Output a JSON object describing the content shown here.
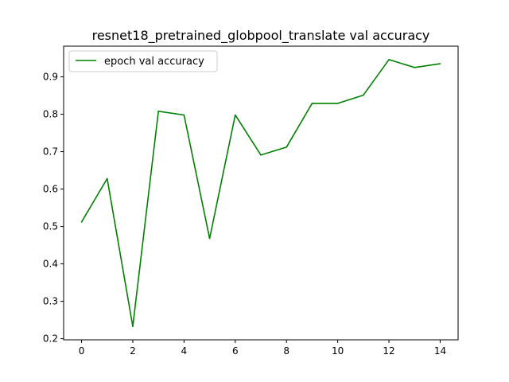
{
  "chart_data": {
    "type": "line",
    "title": "resnet18_pretrained_globpool_translate val accuracy",
    "xlabel": "",
    "ylabel": "",
    "xlim": [
      -0.7,
      14.7
    ],
    "ylim": [
      0.197,
      0.982
    ],
    "xticks": [
      0,
      2,
      4,
      6,
      8,
      10,
      12,
      14
    ],
    "yticks": [
      0.2,
      0.3,
      0.4,
      0.5,
      0.6,
      0.7,
      0.8,
      0.9
    ],
    "xtick_labels": [
      "0",
      "2",
      "4",
      "6",
      "8",
      "10",
      "12",
      "14"
    ],
    "ytick_labels": [
      "0.2",
      "0.3",
      "0.4",
      "0.5",
      "0.6",
      "0.7",
      "0.8",
      "0.9"
    ],
    "grid": false,
    "legend_position": "top-left",
    "series": [
      {
        "name": "epoch val accuracy",
        "color": "#008000",
        "x": [
          0,
          1,
          2,
          3,
          4,
          5,
          6,
          7,
          8,
          9,
          10,
          11,
          12,
          13,
          14
        ],
        "y": [
          0.512,
          0.628,
          0.233,
          0.808,
          0.798,
          0.468,
          0.798,
          0.691,
          0.712,
          0.829,
          0.829,
          0.851,
          0.946,
          0.925,
          0.935
        ]
      }
    ]
  }
}
